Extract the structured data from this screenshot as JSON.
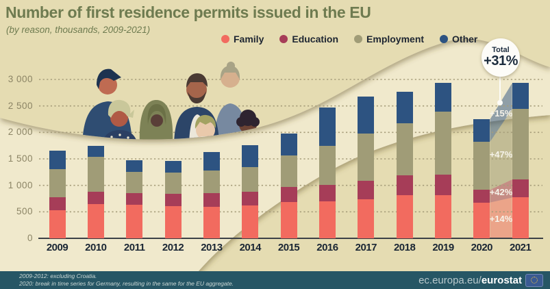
{
  "header": {
    "title": "Number of first residence permits issued in the EU",
    "subtitle": "(by reason, thousands, 2009-2021)"
  },
  "annotations": {
    "total_label": "Total",
    "total_value": "+31%",
    "segment_changes_2020_to_2021": {
      "Other": "+15%",
      "Employment": "+47%",
      "Education": "+42%",
      "Family": "+14%"
    }
  },
  "chart_data": {
    "type": "bar",
    "stacked": true,
    "title": "Number of first residence permits issued in the EU",
    "subtitle": "(by reason, thousands, 2009-2021)",
    "xlabel": "",
    "ylabel": "thousands",
    "ylim": [
      0,
      3100
    ],
    "grid": "dotted horizontal",
    "legend_position": "top",
    "categories": [
      "2009",
      "2010",
      "2011",
      "2012",
      "2013",
      "2014",
      "2015",
      "2016",
      "2017",
      "2018",
      "2019",
      "2020",
      "2021"
    ],
    "series": [
      {
        "name": "Family",
        "color": "#f26b5f",
        "values": [
          535,
          645,
          630,
          605,
          590,
          615,
          690,
          700,
          735,
          810,
          820,
          675,
          770
        ]
      },
      {
        "name": "Education",
        "color": "#a63d58",
        "values": [
          235,
          235,
          220,
          230,
          260,
          270,
          280,
          310,
          345,
          375,
          385,
          240,
          340
        ]
      },
      {
        "name": "Employment",
        "color": "#a09c77",
        "values": [
          540,
          665,
          400,
          405,
          430,
          465,
          595,
          740,
          905,
          985,
          1190,
          905,
          1330
        ]
      },
      {
        "name": "Other",
        "color": "#2d5381",
        "values": [
          350,
          195,
          220,
          215,
          345,
          405,
          420,
          725,
          690,
          595,
          545,
          425,
          490
        ]
      }
    ],
    "yticks": [
      {
        "label": "0",
        "value": 0
      },
      {
        "label": "500",
        "value": 500
      },
      {
        "label": "1 000",
        "value": 1000
      },
      {
        "label": "1 500",
        "value": 1500
      },
      {
        "label": "2 000",
        "value": 2000
      },
      {
        "label": "2 500",
        "value": 2500
      },
      {
        "label": "3 000",
        "value": 3000
      }
    ],
    "annotation_total_change": "Total +31%"
  },
  "footnotes": {
    "line1": "2009-2012: excluding Croatia.",
    "line2": "2020: break in time series for Germany, resulting in the same for the EU aggregate."
  },
  "footer": {
    "url_prefix": "ec.europa.eu/",
    "url_bold": "eurostat"
  }
}
